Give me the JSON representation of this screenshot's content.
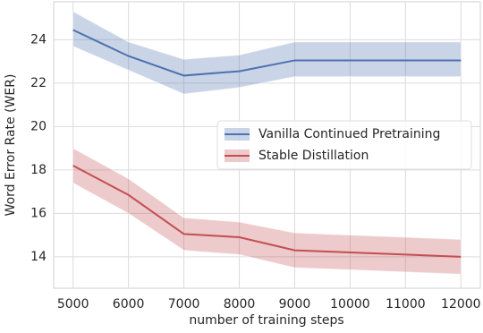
{
  "chart_data": {
    "type": "line",
    "xlabel": "number of training steps",
    "ylabel": "Word Error Rate (WER)",
    "x": [
      5000,
      6000,
      7000,
      8000,
      9000,
      10000,
      11000,
      12000
    ],
    "xlim": [
      4650,
      12350
    ],
    "xticks": [
      5000,
      6000,
      7000,
      8000,
      9000,
      10000,
      11000,
      12000
    ],
    "ylim": [
      12.55,
      25.75
    ],
    "yticks": [
      14,
      16,
      18,
      20,
      22,
      24
    ],
    "grid": true,
    "legend": "center right",
    "series": [
      {
        "name": "Vanilla Continued Pretraining",
        "color": "#4c72b0",
        "values": [
          24.45,
          23.25,
          22.35,
          22.55,
          23.05,
          23.05,
          23.05,
          23.05
        ],
        "lower": [
          23.7,
          22.6,
          21.5,
          21.8,
          22.3,
          22.3,
          22.3,
          22.3
        ],
        "upper": [
          25.3,
          23.9,
          23.1,
          23.3,
          23.9,
          23.9,
          23.9,
          23.9
        ]
      },
      {
        "name": "Stable Distillation",
        "color": "#c44e52",
        "values": [
          18.2,
          16.85,
          15.05,
          14.9,
          14.3,
          14.2,
          14.1,
          14.0
        ],
        "lower": [
          17.4,
          16.0,
          14.3,
          14.1,
          13.5,
          13.4,
          13.3,
          13.2
        ],
        "upper": [
          19.0,
          17.6,
          15.8,
          15.6,
          15.1,
          15.0,
          14.9,
          14.8
        ]
      }
    ]
  }
}
